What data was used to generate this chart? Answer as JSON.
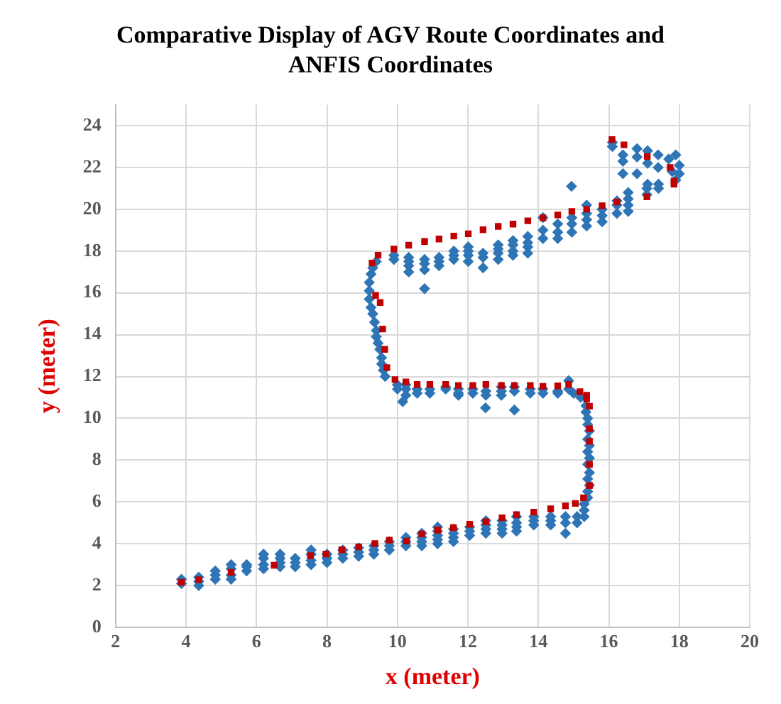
{
  "chart_data": {
    "type": "scatter",
    "title": "Comparative Display of AGV Route Coordinates and ANFIS Coordinates",
    "xlabel": "x (meter)",
    "ylabel": "y (meter)",
    "xlim": [
      2,
      20
    ],
    "xticks": [
      2,
      4,
      6,
      8,
      10,
      12,
      14,
      16,
      18,
      20
    ],
    "ylim": [
      0,
      25
    ],
    "yticks": [
      0,
      2,
      4,
      6,
      8,
      10,
      12,
      14,
      16,
      18,
      20,
      22,
      24
    ],
    "grid": true,
    "legend": false,
    "series": [
      {
        "color": "#c00000",
        "marker": "square",
        "x": [
          3.87,
          4.36,
          5.28,
          6.5,
          7.53,
          7.97,
          8.42,
          8.9,
          9.36,
          9.77,
          10.26,
          10.69,
          11.14,
          11.59,
          12.05,
          12.51,
          12.97,
          13.38,
          13.87,
          14.35,
          14.77,
          15.05,
          15.28,
          15.45,
          15.45,
          15.45,
          15.45,
          15.45,
          15.37,
          15.37,
          15.18,
          14.86,
          14.55,
          14.13,
          13.77,
          13.32,
          12.95,
          12.51,
          12.14,
          11.73,
          11.37,
          10.92,
          10.56,
          10.24,
          9.93,
          9.7,
          9.64,
          9.58,
          9.51,
          9.38,
          9.28,
          9.45,
          9.9,
          10.32,
          10.77,
          11.18,
          11.6,
          12.01,
          12.43,
          12.86,
          13.28,
          13.7,
          14.13,
          14.55,
          14.95,
          15.37,
          15.81,
          16.23,
          17.08,
          17.85,
          17.85,
          17.74,
          17.09,
          16.43,
          16.09
        ],
        "values": [
          2.16,
          2.28,
          2.63,
          2.97,
          3.43,
          3.51,
          3.71,
          3.85,
          4.01,
          4.17,
          4.13,
          4.47,
          4.65,
          4.77,
          4.93,
          5.05,
          5.24,
          5.39,
          5.51,
          5.67,
          5.81,
          5.93,
          6.2,
          6.78,
          7.8,
          8.9,
          9.5,
          10.58,
          10.93,
          11.1,
          11.27,
          11.62,
          11.55,
          11.53,
          11.57,
          11.57,
          11.57,
          11.62,
          11.57,
          11.57,
          11.62,
          11.62,
          11.62,
          11.74,
          11.85,
          12.43,
          13.3,
          14.27,
          15.54,
          15.88,
          17.43,
          17.8,
          18.1,
          18.28,
          18.46,
          18.58,
          18.72,
          18.83,
          19.02,
          19.18,
          19.29,
          19.45,
          19.59,
          19.73,
          19.9,
          20.0,
          20.17,
          20.35,
          20.6,
          21.2,
          21.35,
          22.0,
          22.52,
          23.08,
          23.33
        ]
      },
      {
        "color": "#2e75b6",
        "marker": "diamond",
        "x": [
          3.87,
          3.87,
          4.36,
          4.36,
          4.36,
          4.83,
          4.83,
          4.83,
          5.28,
          5.28,
          5.28,
          5.28,
          5.72,
          5.72,
          5.72,
          6.2,
          6.2,
          6.2,
          6.2,
          6.67,
          6.67,
          6.67,
          6.67,
          7.1,
          7.1,
          7.1,
          7.55,
          7.55,
          7.55,
          7.55,
          8.0,
          8.0,
          8.0,
          8.45,
          8.45,
          8.45,
          8.9,
          8.9,
          8.9,
          9.33,
          9.33,
          9.33,
          9.77,
          9.77,
          9.77,
          10.24,
          10.24,
          10.24,
          10.69,
          10.69,
          10.69,
          10.69,
          11.14,
          11.14,
          11.14,
          11.14,
          11.14,
          11.59,
          11.59,
          11.59,
          11.59,
          12.05,
          12.05,
          12.05,
          12.51,
          12.51,
          12.51,
          12.51,
          12.97,
          12.97,
          12.97,
          12.97,
          13.38,
          13.38,
          13.38,
          13.38,
          13.87,
          13.87,
          13.87,
          14.35,
          14.35,
          14.35,
          14.77,
          14.77,
          14.77,
          15.1,
          15.1,
          15.3,
          15.3,
          15.3,
          15.4,
          15.4,
          15.45,
          15.4,
          15.45,
          15.4,
          15.45,
          15.4,
          15.45,
          15.4,
          15.45,
          15.4,
          15.4,
          15.35,
          15.35,
          15.2,
          15.0,
          10.0,
          10.0,
          10.24,
          10.24,
          10.24,
          10.15,
          10.56,
          10.56,
          10.92,
          10.92,
          11.37,
          11.37,
          11.73,
          11.73,
          11.73,
          12.14,
          12.14,
          12.51,
          12.51,
          12.5,
          12.95,
          12.95,
          12.95,
          13.32,
          13.32,
          13.32,
          13.77,
          13.77,
          14.13,
          14.13,
          14.55,
          14.55,
          14.86,
          14.86,
          9.65,
          9.6,
          9.55,
          9.55,
          9.5,
          9.45,
          9.4,
          9.4,
          9.35,
          9.3,
          9.25,
          9.2,
          9.2,
          9.2,
          9.25,
          9.3,
          9.4,
          9.9,
          9.9,
          10.32,
          10.32,
          10.32,
          10.32,
          10.77,
          10.77,
          10.77,
          10.77,
          11.18,
          11.18,
          11.18,
          11.6,
          11.6,
          11.6,
          12.01,
          12.01,
          12.01,
          12.01,
          12.43,
          12.43,
          12.43,
          12.86,
          12.86,
          12.86,
          12.86,
          13.28,
          13.28,
          13.28,
          13.28,
          13.7,
          13.7,
          13.7,
          13.7,
          14.13,
          14.13,
          14.13,
          14.55,
          14.55,
          14.55,
          14.94,
          14.95,
          14.95,
          14.95,
          15.37,
          15.37,
          15.37,
          15.37,
          15.81,
          15.81,
          15.81,
          16.23,
          16.23,
          16.23,
          16.55,
          16.55,
          16.55,
          16.55,
          17.08,
          17.08,
          17.41,
          17.41,
          16.1,
          16.1,
          16.4,
          16.4,
          16.4,
          16.8,
          16.8,
          16.8,
          17.1,
          17.1,
          17.1,
          17.4,
          17.4,
          17.7,
          17.8,
          17.9,
          17.9,
          18.0,
          18.0
        ],
        "values": [
          2.1,
          2.3,
          2.0,
          2.2,
          2.4,
          2.3,
          2.5,
          2.7,
          2.3,
          2.5,
          2.8,
          3.0,
          2.7,
          2.9,
          3.0,
          2.8,
          3.0,
          3.3,
          3.5,
          2.9,
          3.1,
          3.3,
          3.5,
          2.9,
          3.1,
          3.3,
          3.0,
          3.2,
          3.5,
          3.7,
          3.1,
          3.3,
          3.5,
          3.3,
          3.5,
          3.7,
          3.4,
          3.6,
          3.8,
          3.5,
          3.7,
          3.9,
          3.7,
          3.9,
          4.1,
          3.9,
          4.1,
          4.3,
          3.9,
          4.1,
          4.3,
          4.5,
          4.0,
          4.2,
          4.4,
          4.6,
          4.8,
          4.1,
          4.3,
          4.5,
          4.7,
          4.4,
          4.6,
          4.8,
          4.5,
          4.7,
          4.9,
          5.1,
          4.5,
          4.7,
          4.9,
          5.1,
          4.6,
          4.8,
          5.0,
          5.3,
          4.9,
          5.1,
          5.3,
          4.9,
          5.1,
          5.3,
          4.5,
          5.0,
          5.3,
          5.0,
          5.3,
          5.3,
          5.6,
          5.9,
          6.2,
          6.5,
          6.8,
          7.1,
          7.4,
          7.8,
          8.1,
          8.4,
          8.7,
          9.0,
          9.4,
          9.7,
          10.0,
          10.3,
          10.6,
          11.0,
          11.2,
          11.4,
          11.6,
          11.1,
          11.4,
          11.6,
          10.8,
          11.2,
          11.4,
          11.2,
          11.4,
          11.4,
          11.5,
          11.1,
          11.2,
          11.4,
          11.2,
          11.4,
          11.1,
          11.3,
          10.5,
          11.1,
          11.3,
          11.5,
          11.3,
          11.5,
          10.4,
          11.2,
          11.4,
          11.2,
          11.4,
          11.2,
          11.3,
          11.4,
          11.8,
          12.0,
          12.3,
          12.6,
          12.9,
          13.3,
          13.6,
          13.9,
          14.2,
          14.6,
          15.0,
          15.3,
          15.7,
          16.1,
          16.5,
          16.9,
          17.2,
          17.5,
          17.6,
          17.8,
          17.0,
          17.3,
          17.5,
          17.7,
          16.2,
          17.1,
          17.4,
          17.6,
          17.3,
          17.5,
          17.7,
          17.6,
          17.8,
          18.0,
          17.5,
          17.8,
          18.0,
          18.2,
          17.2,
          17.7,
          17.9,
          17.6,
          17.9,
          18.1,
          18.3,
          17.8,
          18.0,
          18.3,
          18.5,
          17.9,
          18.2,
          18.4,
          18.7,
          18.6,
          19.0,
          19.6,
          18.6,
          18.9,
          19.3,
          21.1,
          18.9,
          19.3,
          19.6,
          19.2,
          19.5,
          19.8,
          20.2,
          19.4,
          19.7,
          20.0,
          19.8,
          20.2,
          20.4,
          19.9,
          20.2,
          20.5,
          20.8,
          20.7,
          21.0,
          21.0,
          21.2,
          23.2,
          23.0,
          22.6,
          22.3,
          21.7,
          22.9,
          22.5,
          21.7,
          22.8,
          22.2,
          21.2,
          22.6,
          22.0,
          22.4,
          21.8,
          22.6,
          21.4,
          21.7,
          22.1
        ]
      }
    ]
  }
}
